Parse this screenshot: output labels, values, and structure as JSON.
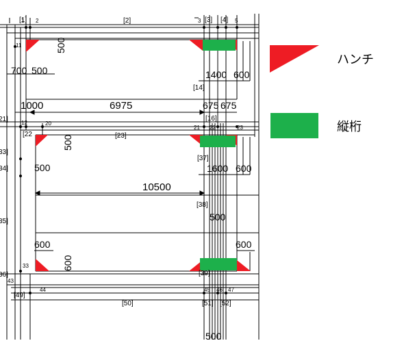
{
  "legend": {
    "haunch": {
      "label": "ハンチ",
      "color": "#ee1c24"
    },
    "girder": {
      "label": "縦桁",
      "color": "#1db04b"
    }
  },
  "node_numbers": {
    "n1": "1",
    "n2": "2",
    "n3": "3",
    "n5": "5",
    "n11": "11",
    "n12": "12",
    "n20": "20",
    "n21": "21",
    "n22": "22",
    "n23": "23",
    "n33": "33",
    "n43": "43",
    "n44": "44",
    "n45": "45",
    "n46": "46",
    "n47": "47"
  },
  "member_labels": {
    "m1": "[1]",
    "m2": "[2]",
    "m3": "[3]",
    "m4": "[4]",
    "m14": "[14]",
    "m16": "[16]",
    "m21": "21]",
    "m22": "[22",
    "m23": "[23]",
    "m33": "33]",
    "m34": "34]",
    "m35": "35]",
    "m36": "36]",
    "m37": "[37]",
    "m38": "[38]",
    "m39": "[39]",
    "m49": "[49]",
    "m50": "[50]",
    "m51": "[51]",
    "m52": "[52]"
  },
  "dimensions": {
    "d500_top": "500",
    "d700": "700",
    "d500_left": "500",
    "d1400": "1400",
    "d600_top": "600",
    "d1000": "1000",
    "d6975": "6975",
    "d675": "675",
    "d675b": "675",
    "d500_mid": "500",
    "d500_mid_left": "500",
    "d1600": "1600",
    "d600_mid": "600",
    "d10500": "10500",
    "d500_center": "500",
    "d600_bl": "600",
    "d600_bl_v": "600",
    "d600_br": "600",
    "d500_bottom": "500"
  }
}
